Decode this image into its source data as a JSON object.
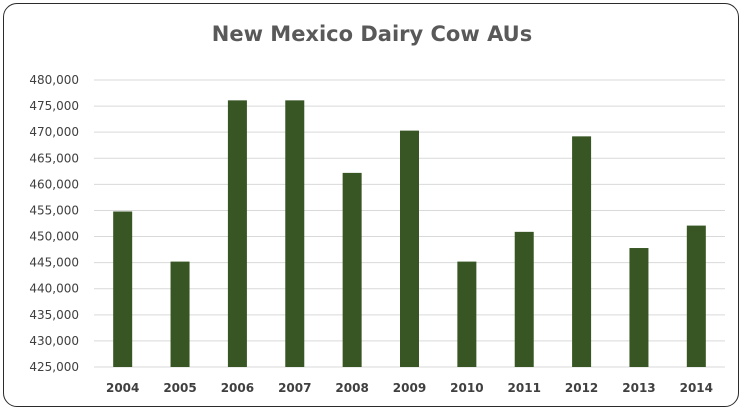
{
  "chart_data": {
    "type": "bar",
    "title": "New Mexico Dairy Cow AUs",
    "xlabel": "",
    "ylabel": "",
    "categories": [
      "2004",
      "2005",
      "2006",
      "2007",
      "2008",
      "2009",
      "2010",
      "2011",
      "2012",
      "2013",
      "2014"
    ],
    "values": [
      454800,
      445200,
      476100,
      476100,
      462200,
      470300,
      445200,
      450900,
      469200,
      447800,
      452100
    ],
    "ylim": [
      425000,
      480000
    ],
    "yticks": [
      425000,
      430000,
      435000,
      440000,
      445000,
      450000,
      455000,
      460000,
      465000,
      470000,
      475000,
      480000
    ],
    "ytick_labels": [
      "425,000",
      "430,000",
      "435,000",
      "440,000",
      "445,000",
      "450,000",
      "455,000",
      "460,000",
      "465,000",
      "470,000",
      "475,000",
      "480,000"
    ],
    "grid": true,
    "legend": "none",
    "bar_color": "#375623",
    "grid_color": "#d9d9d9"
  }
}
